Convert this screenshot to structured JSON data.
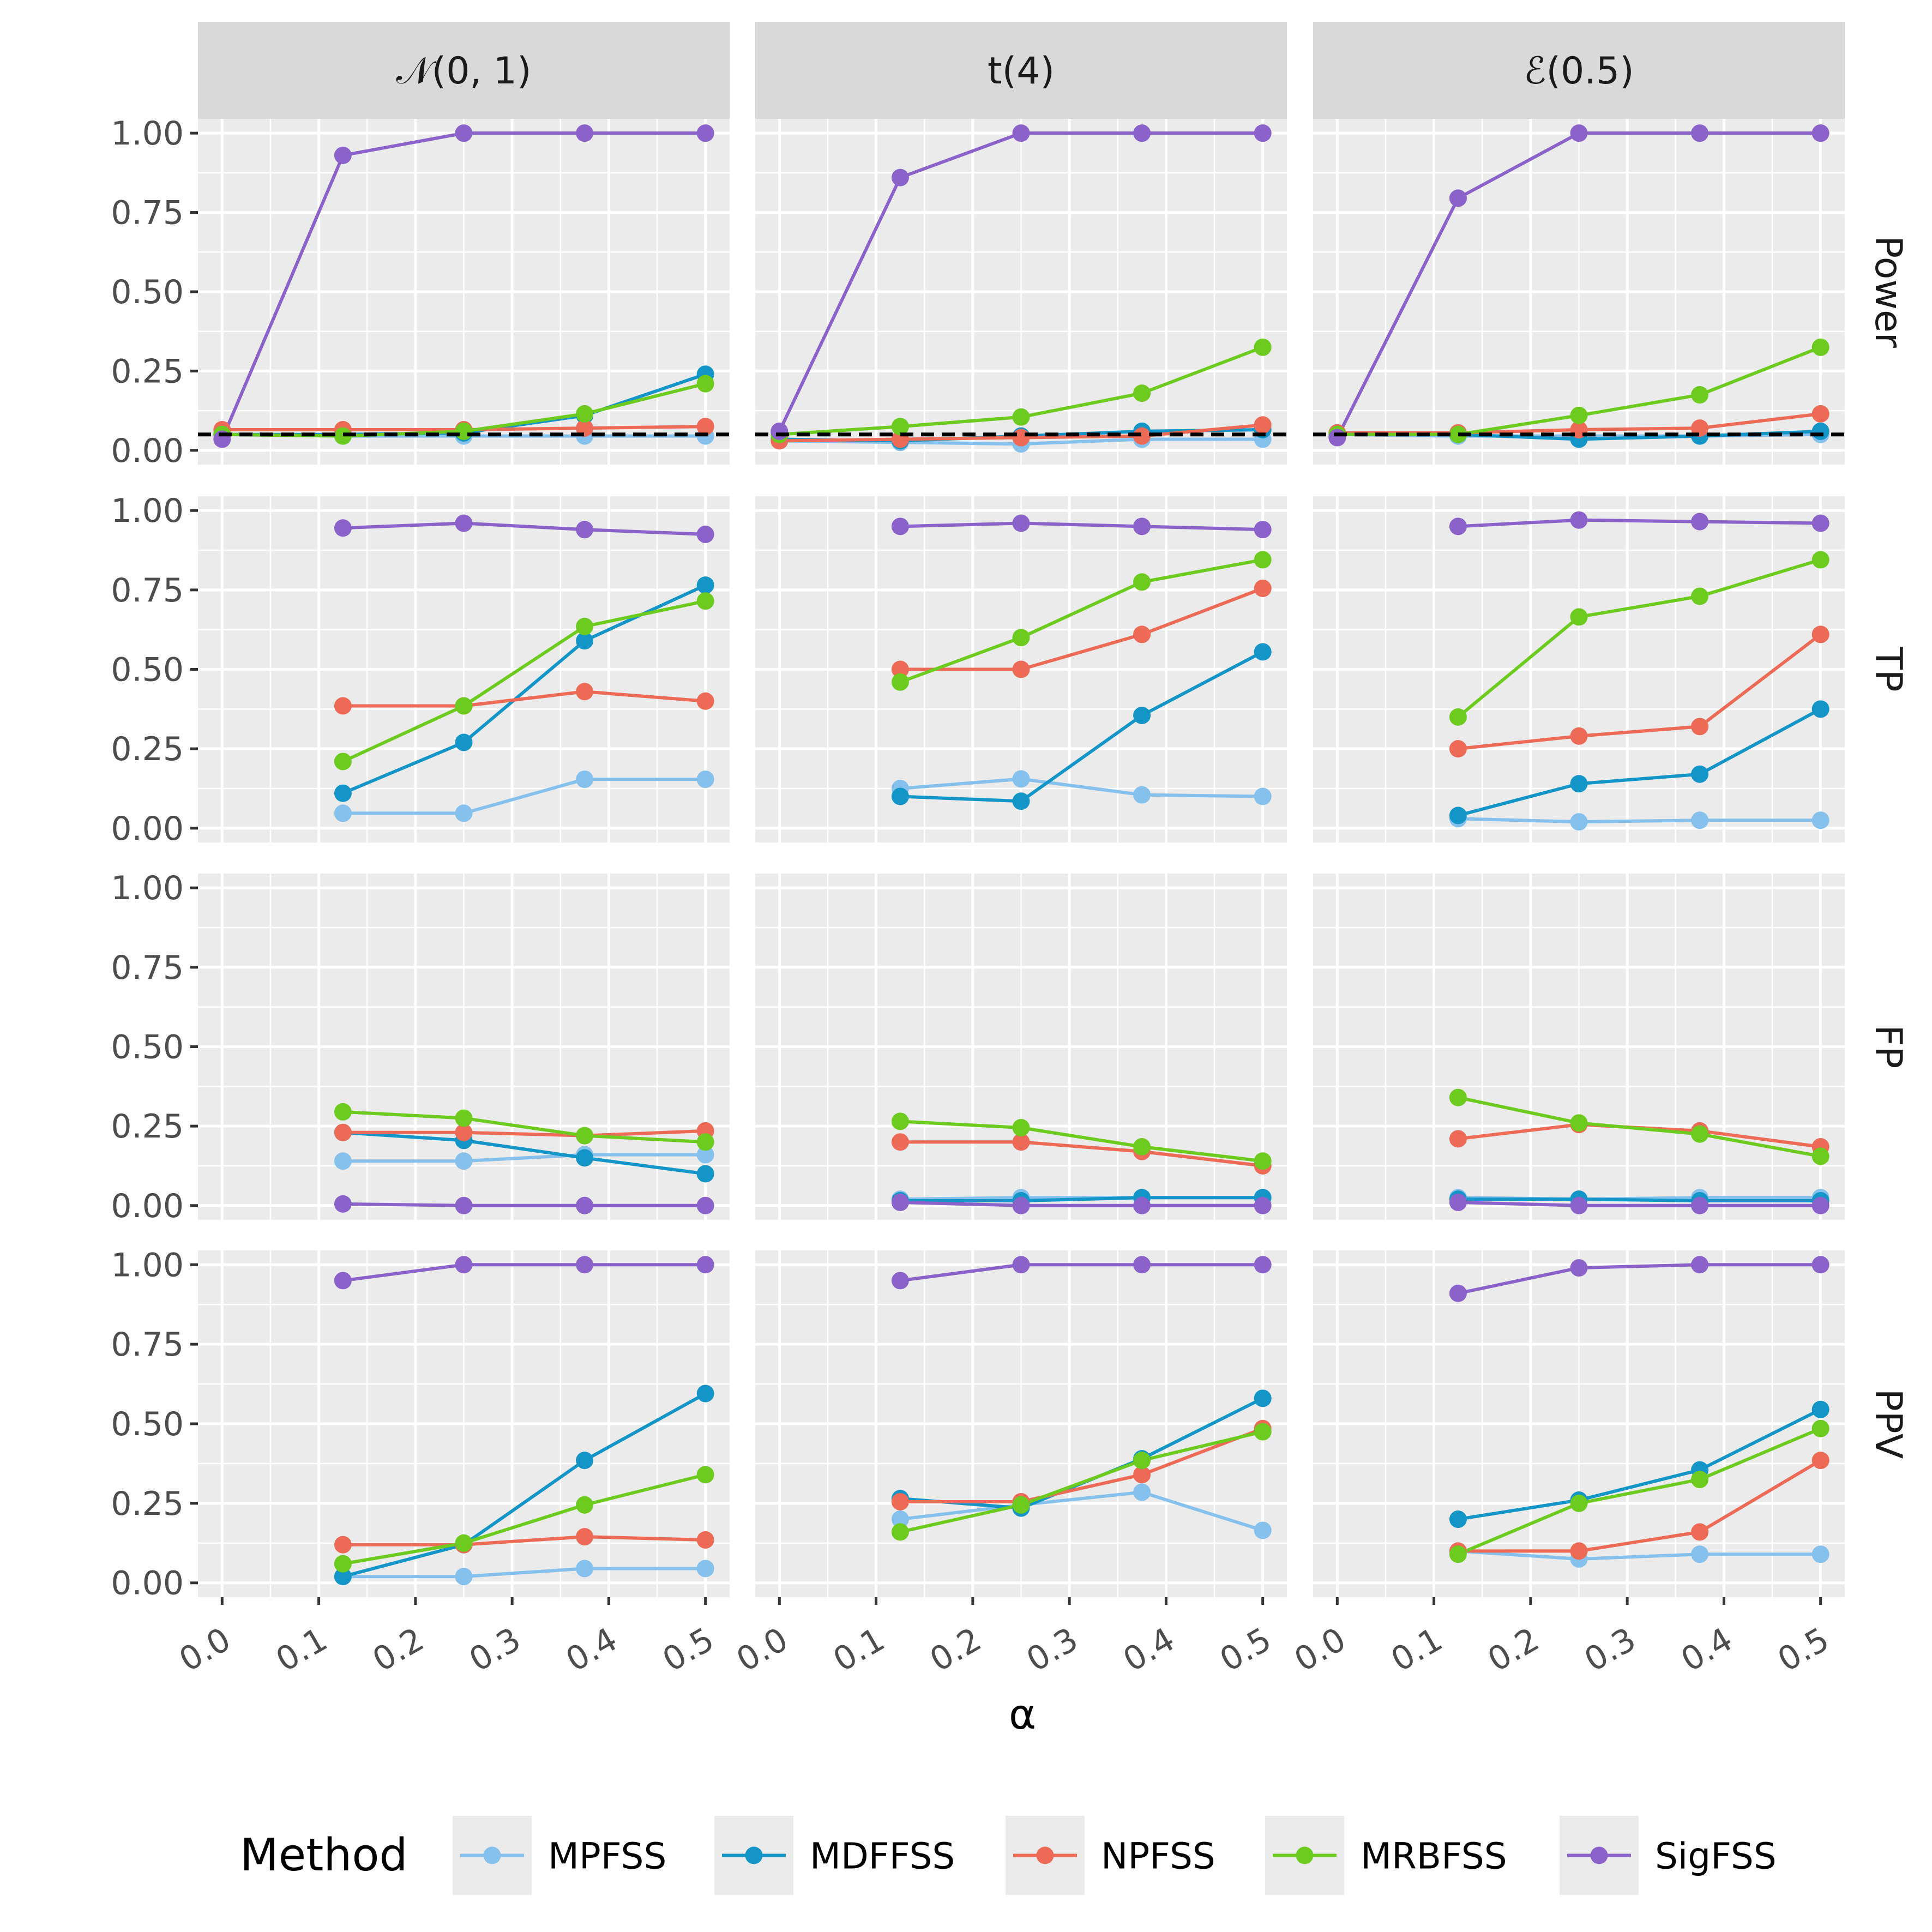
{
  "chart_data": {
    "type": "line",
    "facets": {
      "columns": [
        "𝒩(0, 1)",
        "t(4)",
        "ℰ(0.5)"
      ],
      "rows": [
        "Power",
        "TP",
        "FP",
        "PPV"
      ]
    },
    "xlabel": "α",
    "x_ticks": [
      "0.0",
      "0.1",
      "0.2",
      "0.3",
      "0.4",
      "0.5"
    ],
    "xlim": [
      -0.025,
      0.525
    ],
    "y_ticks": [
      "0.00",
      "0.25",
      "0.50",
      "0.75",
      "1.00"
    ],
    "ylim": [
      -0.045,
      1.045
    ],
    "reference_line": {
      "row": "Power",
      "y": 0.05,
      "style": "dashed",
      "color": "#000000"
    },
    "legend": {
      "title": "Method",
      "position": "bottom",
      "entries": [
        "MPFSS",
        "MDFFSS",
        "NPFSS",
        "MRBFSS",
        "SigFSS"
      ]
    },
    "series_colors": {
      "MPFSS": "#85C1EC",
      "MDFFSS": "#1395C7",
      "NPFSS": "#EC6A56",
      "MRBFSS": "#6CCB1E",
      "SigFSS": "#8A62C9"
    },
    "x": [
      0.0,
      0.125,
      0.25,
      0.375,
      0.5
    ],
    "panels": [
      {
        "row": "Power",
        "col": "𝒩(0, 1)",
        "series": [
          {
            "name": "MPFSS",
            "values": [
              0.05,
              0.045,
              0.045,
              0.045,
              0.045
            ]
          },
          {
            "name": "MDFFSS",
            "values": [
              0.05,
              0.05,
              0.055,
              0.11,
              0.24
            ]
          },
          {
            "name": "NPFSS",
            "values": [
              0.065,
              0.065,
              0.065,
              0.07,
              0.075
            ]
          },
          {
            "name": "MRBFSS",
            "values": [
              0.05,
              0.045,
              0.06,
              0.115,
              0.21
            ]
          },
          {
            "name": "SigFSS",
            "values": [
              0.035,
              0.93,
              1.0,
              1.0,
              1.0
            ]
          }
        ]
      },
      {
        "row": "Power",
        "col": "t(4)",
        "series": [
          {
            "name": "MPFSS",
            "values": [
              0.03,
              0.025,
              0.02,
              0.035,
              0.035
            ]
          },
          {
            "name": "MDFFSS",
            "values": [
              0.035,
              0.03,
              0.045,
              0.06,
              0.065
            ]
          },
          {
            "name": "NPFSS",
            "values": [
              0.03,
              0.035,
              0.04,
              0.045,
              0.08
            ]
          },
          {
            "name": "MRBFSS",
            "values": [
              0.05,
              0.075,
              0.105,
              0.18,
              0.325
            ]
          },
          {
            "name": "SigFSS",
            "values": [
              0.06,
              0.86,
              1.0,
              1.0,
              1.0
            ]
          }
        ]
      },
      {
        "row": "Power",
        "col": "ℰ(0.5)",
        "series": [
          {
            "name": "MPFSS",
            "values": [
              0.05,
              0.045,
              0.045,
              0.045,
              0.05
            ]
          },
          {
            "name": "MDFFSS",
            "values": [
              0.05,
              0.05,
              0.035,
              0.045,
              0.06
            ]
          },
          {
            "name": "NPFSS",
            "values": [
              0.055,
              0.055,
              0.065,
              0.07,
              0.115
            ]
          },
          {
            "name": "MRBFSS",
            "values": [
              0.05,
              0.05,
              0.11,
              0.175,
              0.325
            ]
          },
          {
            "name": "SigFSS",
            "values": [
              0.04,
              0.795,
              1.0,
              1.0,
              1.0
            ]
          }
        ]
      },
      {
        "row": "TP",
        "col": "𝒩(0, 1)",
        "series": [
          {
            "name": "MPFSS",
            "values": [
              null,
              0.047,
              0.047,
              0.154,
              0.154
            ]
          },
          {
            "name": "MDFFSS",
            "values": [
              null,
              0.11,
              0.27,
              0.59,
              0.765
            ]
          },
          {
            "name": "NPFSS",
            "values": [
              null,
              0.385,
              0.385,
              0.43,
              0.4
            ]
          },
          {
            "name": "MRBFSS",
            "values": [
              null,
              0.21,
              0.385,
              0.635,
              0.715
            ]
          },
          {
            "name": "SigFSS",
            "values": [
              null,
              0.945,
              0.96,
              0.94,
              0.925
            ]
          }
        ]
      },
      {
        "row": "TP",
        "col": "t(4)",
        "series": [
          {
            "name": "MPFSS",
            "values": [
              null,
              0.125,
              0.155,
              0.105,
              0.1
            ]
          },
          {
            "name": "MDFFSS",
            "values": [
              null,
              0.1,
              0.085,
              0.355,
              0.555
            ]
          },
          {
            "name": "NPFSS",
            "values": [
              null,
              0.5,
              0.5,
              0.61,
              0.755
            ]
          },
          {
            "name": "MRBFSS",
            "values": [
              null,
              0.46,
              0.6,
              0.775,
              0.845
            ]
          },
          {
            "name": "SigFSS",
            "values": [
              null,
              0.95,
              0.96,
              0.95,
              0.94
            ]
          }
        ]
      },
      {
        "row": "TP",
        "col": "ℰ(0.5)",
        "series": [
          {
            "name": "MPFSS",
            "values": [
              null,
              0.03,
              0.02,
              0.025,
              0.025
            ]
          },
          {
            "name": "MDFFSS",
            "values": [
              null,
              0.04,
              0.14,
              0.17,
              0.375
            ]
          },
          {
            "name": "NPFSS",
            "values": [
              null,
              0.25,
              0.29,
              0.32,
              0.61
            ]
          },
          {
            "name": "MRBFSS",
            "values": [
              null,
              0.35,
              0.665,
              0.73,
              0.845
            ]
          },
          {
            "name": "SigFSS",
            "values": [
              null,
              0.95,
              0.97,
              0.965,
              0.96
            ]
          }
        ]
      },
      {
        "row": "FP",
        "col": "𝒩(0, 1)",
        "series": [
          {
            "name": "MPFSS",
            "values": [
              null,
              0.14,
              0.14,
              0.16,
              0.16
            ]
          },
          {
            "name": "MDFFSS",
            "values": [
              null,
              0.23,
              0.205,
              0.15,
              0.1
            ]
          },
          {
            "name": "NPFSS",
            "values": [
              null,
              0.23,
              0.23,
              0.22,
              0.235
            ]
          },
          {
            "name": "MRBFSS",
            "values": [
              null,
              0.295,
              0.275,
              0.22,
              0.2
            ]
          },
          {
            "name": "SigFSS",
            "values": [
              null,
              0.005,
              0.0,
              0.0,
              0.0
            ]
          }
        ]
      },
      {
        "row": "FP",
        "col": "t(4)",
        "series": [
          {
            "name": "MPFSS",
            "values": [
              null,
              0.02,
              0.025,
              0.025,
              0.025
            ]
          },
          {
            "name": "MDFFSS",
            "values": [
              null,
              0.015,
              0.015,
              0.025,
              0.025
            ]
          },
          {
            "name": "NPFSS",
            "values": [
              null,
              0.2,
              0.2,
              0.17,
              0.125
            ]
          },
          {
            "name": "MRBFSS",
            "values": [
              null,
              0.265,
              0.245,
              0.185,
              0.14
            ]
          },
          {
            "name": "SigFSS",
            "values": [
              null,
              0.01,
              0.0,
              0.0,
              0.0
            ]
          }
        ]
      },
      {
        "row": "FP",
        "col": "ℰ(0.5)",
        "series": [
          {
            "name": "MPFSS",
            "values": [
              null,
              0.025,
              0.02,
              0.025,
              0.025
            ]
          },
          {
            "name": "MDFFSS",
            "values": [
              null,
              0.02,
              0.02,
              0.015,
              0.015
            ]
          },
          {
            "name": "NPFSS",
            "values": [
              null,
              0.21,
              0.255,
              0.235,
              0.185
            ]
          },
          {
            "name": "MRBFSS",
            "values": [
              null,
              0.34,
              0.26,
              0.225,
              0.155
            ]
          },
          {
            "name": "SigFSS",
            "values": [
              null,
              0.01,
              0.0,
              0.0,
              0.0
            ]
          }
        ]
      },
      {
        "row": "PPV",
        "col": "𝒩(0, 1)",
        "series": [
          {
            "name": "MPFSS",
            "values": [
              null,
              0.02,
              0.02,
              0.045,
              0.045
            ]
          },
          {
            "name": "MDFFSS",
            "values": [
              null,
              0.02,
              0.12,
              0.385,
              0.595
            ]
          },
          {
            "name": "NPFSS",
            "values": [
              null,
              0.12,
              0.12,
              0.145,
              0.135
            ]
          },
          {
            "name": "MRBFSS",
            "values": [
              null,
              0.06,
              0.125,
              0.245,
              0.34
            ]
          },
          {
            "name": "SigFSS",
            "values": [
              null,
              0.95,
              1.0,
              1.0,
              1.0
            ]
          }
        ]
      },
      {
        "row": "PPV",
        "col": "t(4)",
        "series": [
          {
            "name": "MPFSS",
            "values": [
              null,
              0.2,
              0.245,
              0.285,
              0.165
            ]
          },
          {
            "name": "MDFFSS",
            "values": [
              null,
              0.265,
              0.235,
              0.39,
              0.58
            ]
          },
          {
            "name": "NPFSS",
            "values": [
              null,
              0.255,
              0.255,
              0.34,
              0.485
            ]
          },
          {
            "name": "MRBFSS",
            "values": [
              null,
              0.16,
              0.245,
              0.385,
              0.475
            ]
          },
          {
            "name": "SigFSS",
            "values": [
              null,
              0.95,
              1.0,
              1.0,
              1.0
            ]
          }
        ]
      },
      {
        "row": "PPV",
        "col": "ℰ(0.5)",
        "series": [
          {
            "name": "MPFSS",
            "values": [
              null,
              0.1,
              0.075,
              0.09,
              0.09
            ]
          },
          {
            "name": "MDFFSS",
            "values": [
              null,
              0.2,
              0.26,
              0.355,
              0.545
            ]
          },
          {
            "name": "NPFSS",
            "values": [
              null,
              0.1,
              0.1,
              0.16,
              0.385
            ]
          },
          {
            "name": "MRBFSS",
            "values": [
              null,
              0.09,
              0.25,
              0.325,
              0.485
            ]
          },
          {
            "name": "SigFSS",
            "values": [
              null,
              0.91,
              0.99,
              1.0,
              1.0
            ]
          }
        ]
      }
    ]
  }
}
